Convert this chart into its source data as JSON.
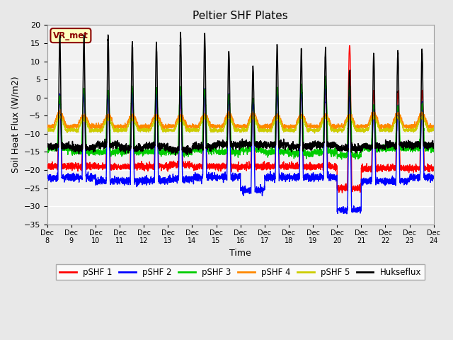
{
  "title": "Peltier SHF Plates",
  "xlabel": "Time",
  "ylabel": "Soil Heat Flux (W/m2)",
  "ylim": [
    -35,
    20
  ],
  "xlim": [
    0,
    16
  ],
  "yticks": [
    -35,
    -30,
    -25,
    -20,
    -15,
    -10,
    -5,
    0,
    5,
    10,
    15,
    20
  ],
  "xtick_labels": [
    "Dec 8",
    "Dec 9",
    "Dec 10",
    "Dec 11",
    "Dec 12",
    "Dec 13",
    "Dec 14",
    "Dec 15",
    "Dec 16",
    "Dec 17",
    "Dec 18",
    "Dec 19",
    "Dec 20",
    "Dec 21",
    "Dec 22",
    "Dec 23",
    "Dec 24"
  ],
  "annotation_text": "VR_met",
  "annotation_color": "#8B0000",
  "annotation_bg": "#FFFFC0",
  "colors": {
    "pSHF1": "#FF0000",
    "pSHF2": "#0000FF",
    "pSHF3": "#00CC00",
    "pSHF4": "#FF8800",
    "pSHF5": "#CCCC00",
    "Hukseflux": "#000000"
  },
  "bg_color": "#E8E8E8",
  "plot_bg": "#F2F2F2",
  "grid_color": "#FFFFFF",
  "legend_labels": [
    "pSHF 1",
    "pSHF 2",
    "pSHF 3",
    "pSHF 4",
    "pSHF 5",
    "Hukseflux"
  ],
  "huk_peaks": [
    17.2,
    17.2,
    17.2,
    15.5,
    14.8,
    17.5,
    17.5,
    12.8,
    8.2,
    14.5,
    13.0,
    13.0,
    7.5,
    11.5,
    12.8,
    12.8
  ],
  "huk_night": [
    -13.5,
    -14.0,
    -13.0,
    -14.0,
    -13.5,
    -14.5,
    -13.5,
    -13.0,
    -13.0,
    -13.0,
    -13.5,
    -13.0,
    -14.0,
    -13.5,
    -13.0,
    -13.0
  ],
  "pshf1_peaks": [
    0.5,
    1.0,
    1.0,
    1.0,
    1.0,
    1.0,
    1.0,
    0.0,
    -0.5,
    1.0,
    2.0,
    3.0,
    14.5,
    1.5,
    1.5,
    1.5
  ],
  "pshf1_night": [
    -19,
    -19,
    -19,
    -19,
    -19,
    -18.5,
    -19,
    -19,
    -19,
    -19,
    -19,
    -19,
    -25,
    -19.5,
    -19.5,
    -19.5
  ],
  "pshf2_peaks": [
    0.5,
    2.0,
    2.0,
    2.0,
    2.0,
    2.0,
    2.0,
    0.5,
    -0.5,
    1.5,
    2.5,
    4.0,
    2.0,
    -3.0,
    -2.5,
    -2.0
  ],
  "pshf2_night": [
    -22,
    -22,
    -23,
    -23,
    -23,
    -22.5,
    -22,
    -22,
    -25.5,
    -22,
    -22,
    -22,
    -31,
    -23,
    -23,
    -22
  ],
  "pshf3_peaks": [
    0.0,
    2.0,
    2.0,
    2.5,
    2.5,
    2.5,
    2.0,
    0.5,
    0.0,
    2.0,
    3.0,
    5.0,
    3.0,
    -2.5,
    -2.5,
    -2.0
  ],
  "pshf3_night": [
    -14,
    -15,
    -15,
    -15,
    -15,
    -15,
    -14.5,
    -15,
    -14.5,
    -15,
    -15.5,
    -15,
    -16,
    -14,
    -14,
    -14
  ],
  "pshf4_peaks": [
    -4.0,
    -5.0,
    -5.0,
    -5.0,
    -5.0,
    -5.0,
    -5.0,
    -4.5,
    -4.5,
    -5.0,
    -5.0,
    -5.0,
    -5.0,
    -4.5,
    -4.5,
    -4.5
  ],
  "pshf4_night": [
    -8,
    -8,
    -8,
    -8,
    -8,
    -8,
    -8,
    -8,
    -8,
    -8,
    -8,
    -8,
    -8,
    -8,
    -8,
    -8
  ],
  "pshf5_peaks": [
    -5.5,
    -6.0,
    -6.0,
    -6.0,
    -6.0,
    -6.0,
    -5.5,
    -5.5,
    -5.5,
    -5.5,
    -5.5,
    -5.5,
    -5.5,
    -5.5,
    -5.5,
    -5.5
  ],
  "pshf5_night": [
    -9,
    -9,
    -9,
    -9,
    -9,
    -9,
    -9,
    -9,
    -9,
    -9,
    -9,
    -9,
    -9,
    -9,
    -9,
    -9
  ]
}
